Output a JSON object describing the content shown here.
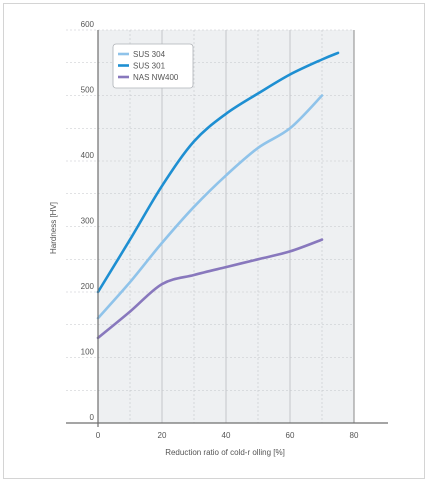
{
  "chart_data": {
    "type": "line",
    "title": "",
    "xlabel": "Reduction ratio of cold-r olling [%]",
    "ylabel": "Hardness [HV]",
    "xlim": [
      0,
      80
    ],
    "ylim": [
      0,
      600
    ],
    "x_ticks": [
      "0",
      "20",
      "40",
      "60",
      "80"
    ],
    "y_ticks": [
      "0",
      "100",
      "200",
      "300",
      "400",
      "500",
      "600"
    ],
    "grid": true,
    "legend_position": "top-left",
    "series": [
      {
        "name": "SUS 304",
        "color": "#8fc3ea",
        "points": [
          [
            0,
            160
          ],
          [
            10,
            215
          ],
          [
            20,
            275
          ],
          [
            30,
            330
          ],
          [
            40,
            378
          ],
          [
            50,
            420
          ],
          [
            60,
            450
          ],
          [
            70,
            500
          ]
        ]
      },
      {
        "name": "SUS 301",
        "color": "#1e8fd2",
        "points": [
          [
            0,
            200
          ],
          [
            10,
            280
          ],
          [
            20,
            362
          ],
          [
            30,
            430
          ],
          [
            40,
            472
          ],
          [
            50,
            503
          ],
          [
            60,
            532
          ],
          [
            70,
            555
          ],
          [
            75,
            565
          ]
        ]
      },
      {
        "name": "NAS NW400",
        "color": "#8878bd",
        "points": [
          [
            0,
            130
          ],
          [
            10,
            170
          ],
          [
            20,
            212
          ],
          [
            30,
            226
          ],
          [
            40,
            238
          ],
          [
            50,
            250
          ],
          [
            60,
            262
          ],
          [
            70,
            280
          ]
        ]
      }
    ]
  }
}
